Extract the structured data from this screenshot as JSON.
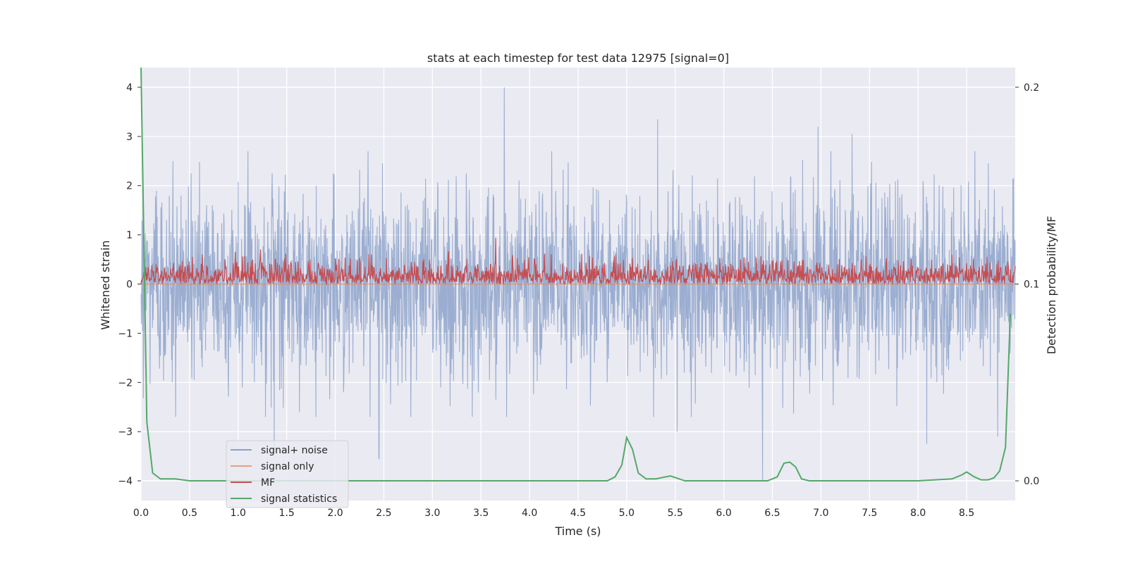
{
  "chart_data": {
    "type": "line",
    "title": "stats at each timestep for test data 12975 [signal=0]",
    "xlabel": "Time (s)",
    "ylabel": "Whitened strain",
    "ylabel_right": "Detection probability/MF",
    "xlim": [
      0,
      9.0
    ],
    "ylim": [
      -4.4,
      4.4
    ],
    "ylim_right": [
      -0.01,
      0.21
    ],
    "xticks": [
      "0.0",
      "0.5",
      "1.0",
      "1.5",
      "2.0",
      "2.5",
      "3.0",
      "3.5",
      "4.0",
      "4.5",
      "5.0",
      "5.5",
      "6.0",
      "6.5",
      "7.0",
      "7.5",
      "8.0",
      "8.5"
    ],
    "yticks": [
      "4",
      "3",
      "2",
      "1",
      "0",
      "−1",
      "−2",
      "−3",
      "−4"
    ],
    "yticks_right": [
      "0.2",
      "0.1",
      "0.0"
    ],
    "grid": true,
    "legend_position": "lower-left",
    "colors": {
      "signal_noise": "#4c72b0",
      "signal_only": "#dd8452",
      "mf": "#c44e52",
      "signal_statistics": "#55a868",
      "axes_bg": "#eaeaf2",
      "grid": "#ffffff"
    },
    "series": [
      {
        "name": "signal+ noise",
        "axis": "left",
        "description_shape": "dense noise, roughly ±2 amplitude with spikes to about 4",
        "peak_points": [
          {
            "x": 0.02,
            "y": 1.9
          },
          {
            "x": 0.33,
            "y": 2.5
          },
          {
            "x": 1.37,
            "y": -3.4
          },
          {
            "x": 2.45,
            "y": -3.55
          },
          {
            "x": 3.74,
            "y": 4.0
          },
          {
            "x": 5.32,
            "y": 3.35
          },
          {
            "x": 5.52,
            "y": -3.0
          },
          {
            "x": 6.4,
            "y": -4.0
          },
          {
            "x": 6.97,
            "y": 3.2
          },
          {
            "x": 7.32,
            "y": 3.05
          },
          {
            "x": 8.09,
            "y": -3.25
          },
          {
            "x": 8.82,
            "y": -3.1
          }
        ]
      },
      {
        "name": "signal only",
        "axis": "left",
        "x": [
          0,
          9.0
        ],
        "y": [
          0.0,
          0.0
        ]
      },
      {
        "name": "MF",
        "axis": "right",
        "description_shape": "dense positive values between about 0.10 and 0.12, peaks near 0.126",
        "range": [
          0.1,
          0.126
        ]
      },
      {
        "name": "signal statistics",
        "axis": "right",
        "x": [
          0.0,
          0.03,
          0.06,
          0.12,
          0.2,
          0.35,
          0.5,
          0.7,
          1.0,
          2.0,
          3.0,
          4.0,
          4.6,
          4.8,
          4.88,
          4.95,
          5.0,
          5.06,
          5.12,
          5.2,
          5.3,
          5.45,
          5.6,
          6.0,
          6.45,
          6.55,
          6.62,
          6.68,
          6.74,
          6.8,
          6.88,
          7.0,
          8.0,
          8.35,
          8.45,
          8.5,
          8.58,
          8.65,
          8.72,
          8.78,
          8.84,
          8.9,
          8.95
        ],
        "y": [
          0.21,
          0.12,
          0.03,
          0.004,
          0.001,
          0.001,
          0.0,
          0.0,
          0.0,
          0.0,
          0.0,
          0.0,
          0.0,
          0.0,
          0.002,
          0.008,
          0.022,
          0.016,
          0.004,
          0.001,
          0.001,
          0.0025,
          0.0,
          0.0,
          0.0,
          0.002,
          0.009,
          0.0095,
          0.007,
          0.001,
          0.0,
          0.0,
          0.0,
          0.001,
          0.003,
          0.0045,
          0.002,
          0.0005,
          0.0005,
          0.0015,
          0.005,
          0.017,
          0.085
        ]
      }
    ]
  }
}
